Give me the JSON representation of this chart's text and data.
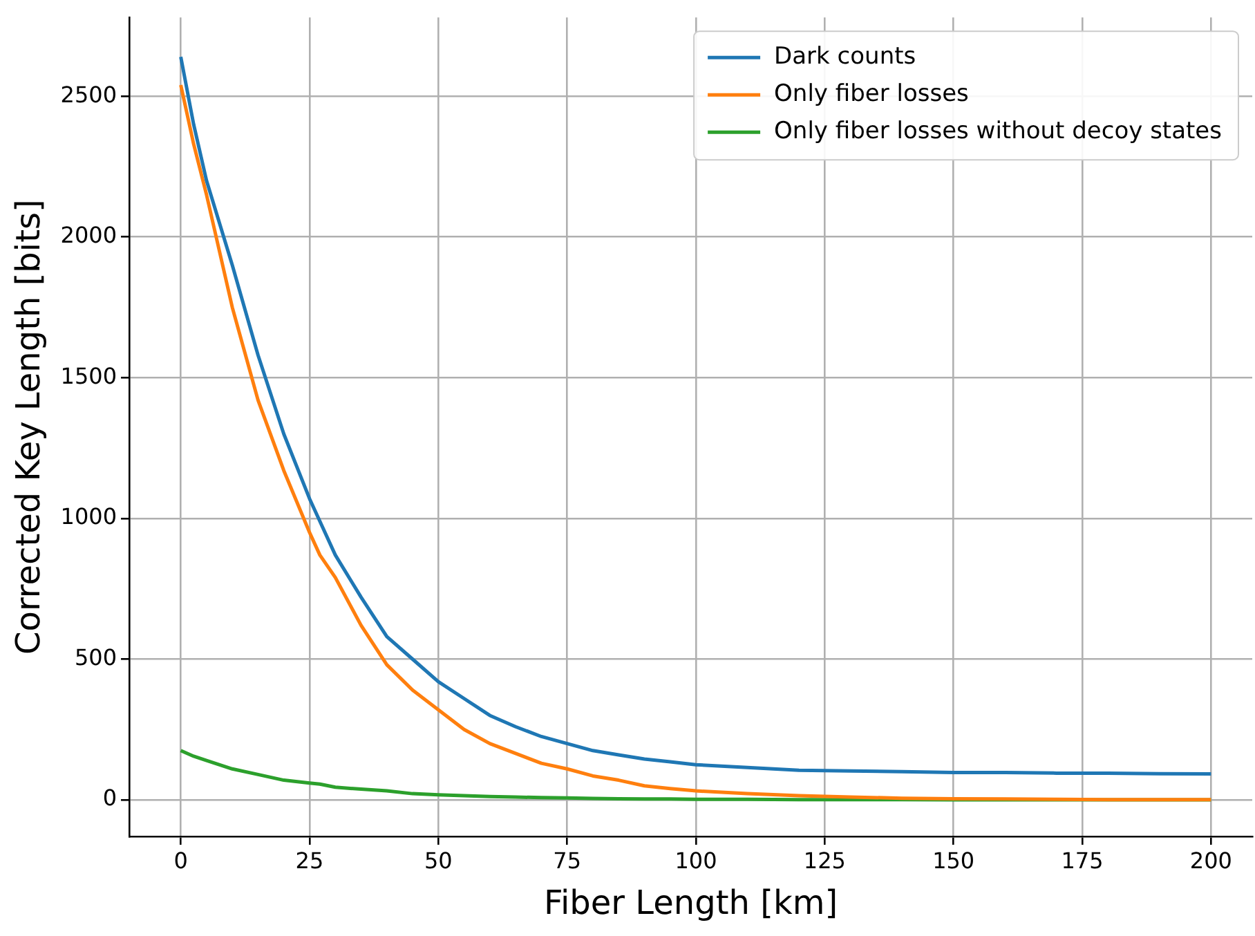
{
  "chart_data": {
    "type": "line",
    "xlabel": "Fiber Length [km]",
    "ylabel": "Corrected Key Length [bits]",
    "x": [
      0,
      2.5,
      5,
      10,
      15,
      20,
      25,
      27,
      30,
      35,
      40,
      45,
      50,
      55,
      60,
      65,
      70,
      75,
      80,
      85,
      90,
      95,
      100,
      110,
      120,
      130,
      140,
      150,
      160,
      170,
      180,
      190,
      200
    ],
    "series": [
      {
        "name": "Dark counts",
        "color": "#1f77b4",
        "values": [
          2640,
          2400,
          2200,
          1900,
          1580,
          1300,
          1070,
          990,
          870,
          720,
          580,
          500,
          420,
          360,
          300,
          260,
          225,
          200,
          175,
          160,
          145,
          135,
          125,
          115,
          105,
          103,
          100,
          97,
          97,
          95,
          95,
          93,
          92
        ]
      },
      {
        "name": "Only fiber losses",
        "color": "#ff7f0e",
        "values": [
          2540,
          2330,
          2150,
          1750,
          1420,
          1170,
          950,
          870,
          790,
          620,
          480,
          390,
          320,
          250,
          200,
          165,
          130,
          110,
          85,
          70,
          50,
          40,
          32,
          22,
          15,
          10,
          6,
          4,
          3,
          2,
          1,
          1,
          1
        ]
      },
      {
        "name": "Only fiber losses without decoy states",
        "color": "#2ca02c",
        "values": [
          175,
          155,
          140,
          110,
          90,
          70,
          60,
          56,
          45,
          38,
          32,
          22,
          18,
          15,
          12,
          10,
          8,
          7,
          5,
          4,
          3,
          3,
          2,
          2,
          1,
          1,
          1,
          0,
          0,
          0,
          0,
          0,
          0
        ]
      }
    ],
    "xlim": [
      -10,
      208
    ],
    "ylim": [
      -130,
      2780
    ],
    "xticks": [
      0,
      25,
      50,
      75,
      100,
      125,
      150,
      175,
      200
    ],
    "yticks": [
      0,
      500,
      1000,
      1500,
      2000,
      2500
    ],
    "grid": true,
    "legend": "top right",
    "marker": "none",
    "line_style": "solid"
  }
}
